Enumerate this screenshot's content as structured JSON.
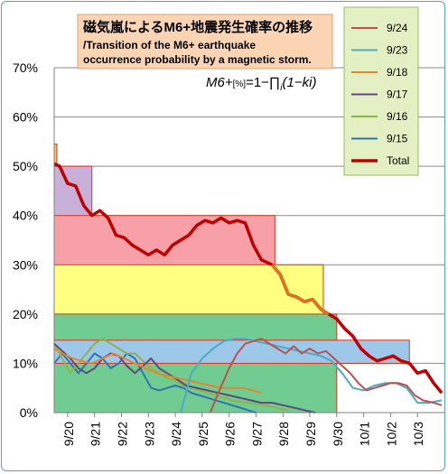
{
  "chart_data": {
    "type": "line",
    "title": "磁気嵐によるM6+地震発生確率の推移",
    "subtitle": "/Transition of the M6+ earthquake occurrence probability by a magnetic storm.",
    "title_line2": "/Transition of the M6+ earthquake",
    "title_line3": "occurrence probability by a magnetic storm.",
    "formula": "M6+[%]=1−∏i(1−ki)",
    "formula_parts": {
      "lhs": "M6+",
      "sub": "[%]",
      "rhs": "=1−∏",
      "index": "i",
      "tail": "(1−ki)"
    },
    "y_ticks": [
      "0%",
      "10%",
      "20%",
      "30%",
      "40%",
      "50%",
      "60%",
      "70%"
    ],
    "ylim": [
      0,
      70
    ],
    "x_ticks": [
      "9/20",
      "9/21",
      "9/22",
      "9/23",
      "9/24",
      "9/25",
      "9/26",
      "9/27",
      "9/28",
      "9/29",
      "9/30",
      "10/1",
      "10/2",
      "10/3"
    ],
    "xlim": [
      -0.5,
      14.0
    ],
    "grid": true,
    "legend": {
      "placement": "top-right",
      "entries": [
        "9/24",
        "9/23",
        "9/18",
        "9/17",
        "9/16",
        "9/15",
        "Total"
      ]
    },
    "colors": {
      "9/24": "#c0504d",
      "9/23": "#4bacc6",
      "9/18": "#e6862f",
      "9/17": "#604a7b",
      "9/16": "#8fb24c",
      "9/15": "#2e75b6",
      "Total": "#c00000",
      "Total_highlight_low": "#e07020"
    },
    "bands": [
      {
        "x0": -0.6,
        "x1": -0.4,
        "y0": 0,
        "y1": 54.5,
        "fill": "#fbbf5a",
        "stroke": "#e0301e"
      },
      {
        "x0": -0.6,
        "x1": 0.9,
        "y0": 0,
        "y1": 50,
        "fill": "#c8b0d8",
        "stroke": "#e0301e"
      },
      {
        "x0": -0.6,
        "x1": 7.7,
        "y0": 0,
        "y1": 40,
        "fill": "#f7a0a8",
        "stroke": "#e0301e"
      },
      {
        "x0": -0.6,
        "x1": 9.5,
        "y0": 0,
        "y1": 30,
        "fill": "#ffff80",
        "stroke": "#e0301e"
      },
      {
        "x0": -0.6,
        "x1": 10.0,
        "y0": 0,
        "y1": 20,
        "fill": "#70cc90",
        "stroke": "#e0301e"
      },
      {
        "x0": -0.6,
        "x1": 12.7,
        "y0": 10,
        "y1": 14.7,
        "fill": "#9ec8ea",
        "stroke": "#e0301e"
      }
    ],
    "series": [
      {
        "name": "Total",
        "x": [
          -0.5,
          -0.3,
          0,
          0.3,
          0.6,
          0.9,
          1.2,
          1.5,
          1.8,
          2.1,
          2.4,
          2.7,
          3.0,
          3.3,
          3.6,
          3.9,
          4.2,
          4.5,
          4.8,
          5.1,
          5.4,
          5.7,
          6.0,
          6.3,
          6.6,
          6.9,
          7.2,
          7.6,
          7.9,
          8.2,
          8.5,
          8.8,
          9.1,
          9.4,
          9.7,
          10.0,
          10.3,
          10.6,
          10.9,
          11.2,
          11.5,
          11.8,
          12.1,
          12.4,
          12.7,
          13.0,
          13.3,
          13.6,
          13.9
        ],
        "y": [
          50.5,
          50,
          46.5,
          46,
          42,
          40,
          41,
          39.5,
          36,
          35.5,
          34,
          33,
          32,
          33,
          32,
          34,
          35,
          36,
          38,
          39,
          38.5,
          39.5,
          38.5,
          39,
          38.5,
          34,
          31,
          30,
          28,
          24,
          23.5,
          22.5,
          23,
          21,
          20,
          19,
          17,
          15.5,
          13,
          11.5,
          10.5,
          11,
          11.5,
          10.5,
          10,
          8,
          8.5,
          6,
          4
        ]
      },
      {
        "name": "9/24",
        "x": [
          5.3,
          5.6,
          6.0,
          6.3,
          6.6,
          6.9,
          7.2,
          7.5,
          7.8,
          8.1,
          8.4,
          8.7,
          9.0,
          9.3,
          9.6,
          9.9,
          10.2,
          10.5,
          10.8,
          11.1,
          11.4,
          11.7,
          12.0,
          12.3,
          12.6,
          12.9,
          13.2,
          13.6,
          13.9
        ],
        "y": [
          0,
          4,
          9,
          12,
          14,
          14.5,
          15,
          14,
          13,
          12,
          13.5,
          12,
          13,
          12,
          12.5,
          11,
          9.5,
          8,
          6,
          4.5,
          5,
          5.5,
          6,
          6,
          5.5,
          3.5,
          2.5,
          2,
          1.5
        ]
      },
      {
        "name": "9/23",
        "x": [
          4.2,
          4.6,
          5.0,
          5.4,
          5.8,
          6.2,
          6.6,
          7.0,
          7.4,
          7.8,
          8.2,
          8.6,
          9.0,
          9.4,
          9.8,
          10.2,
          10.6,
          11.0,
          11.4,
          11.8,
          12.2,
          12.6,
          13.0,
          13.4,
          13.9
        ],
        "y": [
          0,
          8,
          11,
          13,
          14.5,
          15,
          15,
          14.5,
          14,
          13.5,
          13,
          12.5,
          12,
          11.5,
          10.5,
          8,
          5,
          4.5,
          5.5,
          6,
          6,
          5,
          2,
          2,
          2.5
        ]
      },
      {
        "name": "9/18",
        "x": [
          -0.5,
          -0.2,
          0.2,
          0.5,
          0.9,
          1.3,
          1.7,
          2.1,
          2.5,
          2.9,
          3.3,
          3.7,
          4.1,
          4.5,
          4.9,
          5.3,
          5.7,
          6.1,
          6.5,
          6.9,
          7.2
        ],
        "y": [
          13,
          12,
          11,
          10.5,
          10,
          11,
          12,
          11,
          10,
          9,
          8,
          7.5,
          7,
          6.5,
          6,
          5.5,
          5,
          5,
          5,
          4.5,
          4
        ]
      },
      {
        "name": "9/17",
        "x": [
          -0.5,
          -0.2,
          0.1,
          0.4,
          0.7,
          1.0,
          1.3,
          1.6,
          1.9,
          2.2,
          2.5,
          2.8,
          3.1,
          3.4,
          3.7,
          4.0,
          4.4,
          4.8,
          5.2,
          5.6,
          6.0,
          6.4,
          6.8,
          7.2,
          7.6,
          8.0,
          8.4,
          8.8,
          9.2
        ],
        "y": [
          14,
          12.5,
          11,
          9,
          8,
          9,
          11,
          12,
          11.5,
          9.5,
          8,
          9.5,
          11,
          9,
          8,
          7,
          5.5,
          5,
          4.5,
          4,
          3.5,
          3,
          2.5,
          2,
          2,
          1.5,
          1,
          0.5,
          0
        ]
      },
      {
        "name": "9/16",
        "x": [
          -0.5,
          -0.2,
          0.1,
          0.4,
          0.7,
          1.0,
          1.3,
          1.6,
          1.9,
          2.2,
          2.5,
          2.8,
          3.1,
          3.4,
          3.7,
          4.0,
          4.3,
          4.6,
          4.9,
          5.2,
          5.5,
          5.8,
          6.1,
          6.4,
          6.7,
          7.0,
          7.3,
          7.6,
          7.9,
          8.2
        ],
        "y": [
          14,
          11,
          8,
          10,
          12,
          14,
          15,
          14,
          13,
          12,
          12,
          10.5,
          9,
          8,
          7,
          6.5,
          5.5,
          5,
          4.5,
          4,
          3.5,
          3,
          2.5,
          2.2,
          2,
          1.8,
          1.5,
          1.2,
          0.8,
          0.5
        ]
      },
      {
        "name": "9/15",
        "x": [
          -0.5,
          -0.2,
          0.1,
          0.4,
          0.7,
          1.0,
          1.3,
          1.6,
          1.9,
          2.2,
          2.5,
          2.8,
          3.1,
          3.4,
          3.7,
          4.0,
          4.3,
          4.6,
          4.9,
          5.2,
          5.5,
          5.8,
          6.1,
          6.4,
          6.7,
          7.0
        ],
        "y": [
          10,
          12,
          10,
          8,
          10,
          12,
          11,
          9,
          10,
          12,
          11,
          8,
          5,
          4.5,
          5,
          5.5,
          5,
          4,
          3.5,
          3,
          2.5,
          2,
          1.5,
          1,
          0.5,
          0
        ]
      }
    ]
  }
}
